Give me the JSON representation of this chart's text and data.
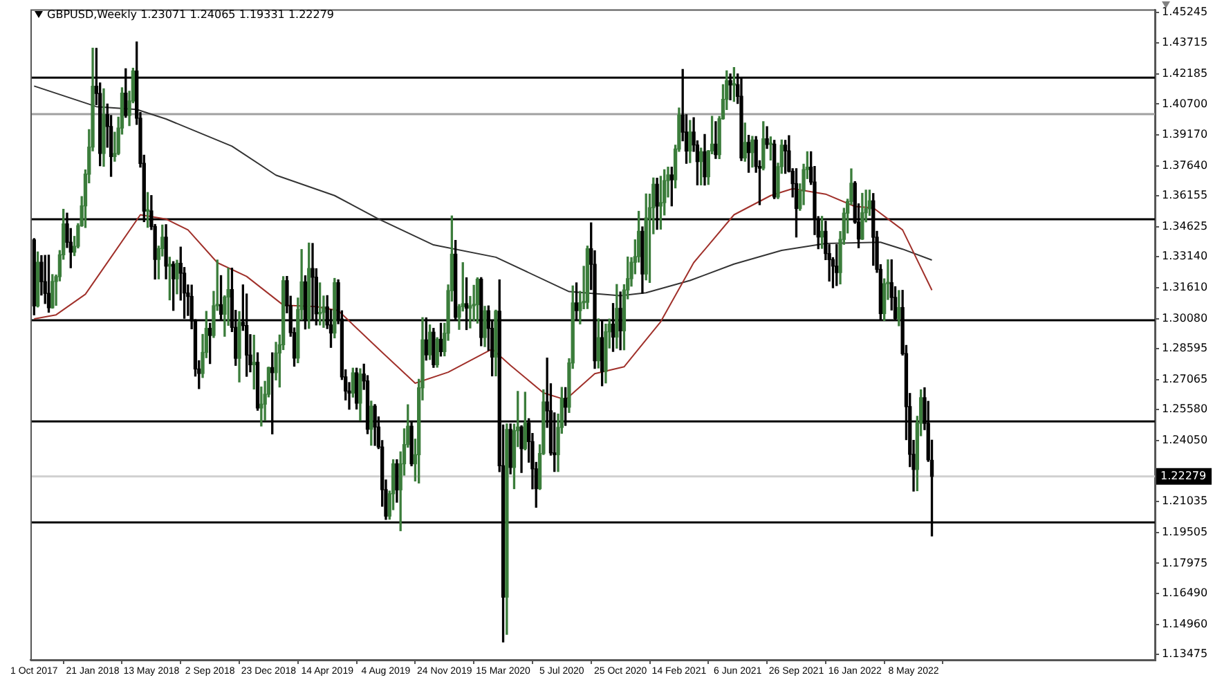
{
  "chart_data": {
    "type": "candlestick",
    "title": "GBPUSD,Weekly 1.23071 1.24065 1.19331 1.22279",
    "colors": [
      "#000000",
      "#3b7d3b",
      "#000000",
      "#000000",
      "#000000",
      "#3b7d3b",
      "#3b7d3b",
      "#3b7d3b",
      "#3b7d3b",
      "#000000",
      "#000000",
      "#3b7d3b",
      "#3b7d3b",
      "#3b7d3b",
      "#3b7d3b",
      "#3b7d3b",
      "#3b7d3b",
      "#000000",
      "#000000",
      "#3b7d3b",
      "#000000",
      "#000000",
      "#3b7d3b",
      "#3b7d3b",
      "#3b7d3b",
      "#000000",
      "#3b7d3b",
      "#3b7d3b",
      "#000000",
      "#000000",
      "#000000",
      "#3b7d3b",
      "#000000",
      "#000000",
      "#3b7d3b",
      "#3b7d3b",
      "#000000",
      "#3b7d3b",
      "#000000",
      "#3b7d3b",
      "#000000",
      "#000000",
      "#000000",
      "#000000",
      "#000000",
      "#000000",
      "#3b7d3b",
      "#3b7d3b",
      "#000000",
      "#3b7d3b",
      "#3b7d3b",
      "#000000",
      "#3b7d3b",
      "#3b7d3b",
      "#000000",
      "#000000",
      "#3b7d3b",
      "#000000",
      "#000000",
      "#000000",
      "#3b7d3b",
      "#000000",
      "#3b7d3b",
      "#3b7d3b",
      "#3b7d3b",
      "#000000",
      "#3b7d3b",
      "#3b7d3b",
      "#3b7d3b",
      "#000000",
      "#000000",
      "#000000",
      "#3b7d3b",
      "#3b7d3b",
      "#000000",
      "#3b7d3b",
      "#000000",
      "#000000",
      "#3b7d3b",
      "#3b7d3b",
      "#000000",
      "#000000",
      "#3b7d3b",
      "#000000",
      "#000000",
      "#000000",
      "#000000",
      "#3b7d3b",
      "#000000",
      "#3b7d3b",
      "#000000",
      "#000000",
      "#3b7d3b",
      "#000000",
      "#000000",
      "#000000",
      "#000000",
      "#3b7d3b",
      "#3b7d3b",
      "#000000",
      "#3b7d3b",
      "#3b7d3b",
      "#3b7d3b",
      "#000000",
      "#3b7d3b",
      "#3b7d3b",
      "#3b7d3b",
      "#000000",
      "#3b7d3b",
      "#000000",
      "#3b7d3b",
      "#000000",
      "#3b7d3b",
      "#3b7d3b",
      "#3b7d3b",
      "#000000",
      "#3b7d3b",
      "#3b7d3b",
      "#000000",
      "#3b7d3b",
      "#3b7d3b",
      "#3b7d3b",
      "#000000",
      "#3b7d3b",
      "#000000",
      "#000000",
      "#3b7d3b",
      "#000000",
      "#000000",
      "#3b7d3b",
      "#000000",
      "#3b7d3b",
      "#3b7d3b",
      "#000000",
      "#3b7d3b",
      "#000000",
      "#000000",
      "#000000",
      "#3b7d3b",
      "#3b7d3b",
      "#000000",
      "#000000",
      "#000000",
      "#3b7d3b",
      "#3b7d3b",
      "#000000",
      "#3b7d3b",
      "#3b7d3b",
      "#000000",
      "#3b7d3b",
      "#3b7d3b",
      "#3b7d3b",
      "#000000",
      "#000000",
      "#3b7d3b",
      "#000000",
      "#3b7d3b",
      "#3b7d3b",
      "#000000",
      "#3b7d3b",
      "#000000",
      "#3b7d3b",
      "#3b7d3b",
      "#3b7d3b",
      "#3b7d3b",
      "#3b7d3b",
      "#000000",
      "#3b7d3b",
      "#3b7d3b",
      "#3b7d3b",
      "#000000",
      "#3b7d3b",
      "#3b7d3b",
      "#3b7d3b",
      "#000000",
      "#3b7d3b",
      "#3b7d3b",
      "#000000",
      "#000000",
      "#3b7d3b",
      "#000000",
      "#000000",
      "#3b7d3b",
      "#000000",
      "#3b7d3b",
      "#3b7d3b",
      "#000000",
      "#3b7d3b",
      "#3b7d3b",
      "#3b7d3b",
      "#000000",
      "#3b7d3b",
      "#000000",
      "#000000",
      "#3b7d3b",
      "#000000",
      "#3b7d3b",
      "#000000",
      "#000000",
      "#3b7d3b",
      "#000000",
      "#3b7d3b",
      "#000000",
      "#3b7d3b",
      "#3b7d3b",
      "#000000",
      "#000000",
      "#000000",
      "#000000",
      "#3b7d3b",
      "#3b7d3b",
      "#3b7d3b",
      "#000000",
      "#000000",
      "#000000",
      "#3b7d3b",
      "#000000",
      "#000000",
      "#000000",
      "#000000",
      "#3b7d3b",
      "#3b7d3b",
      "#3b7d3b",
      "#3b7d3b",
      "#000000",
      "#000000",
      "#3b7d3b",
      "#3b7d3b",
      "#3b7d3b",
      "#000000",
      "#000000",
      "#000000",
      "#3b7d3b",
      "#3b7d3b",
      "#000000",
      "#000000",
      "#3b7d3b",
      "#000000",
      "#000000",
      "#000000",
      "#000000",
      "#3b7d3b",
      "#3b7d3b",
      "#000000",
      "#000000",
      "#000000"
    ],
    "x": [
      "2017-10-01",
      "2017-10-08",
      "2017-10-15",
      "2017-10-22",
      "2017-10-29",
      "2017-11-05",
      "2017-11-12",
      "2017-11-19",
      "2017-11-26",
      "2017-12-03",
      "2017-12-10",
      "2017-12-17",
      "2017-12-24",
      "2017-12-31",
      "2018-01-07",
      "2018-01-14",
      "2018-01-21",
      "2018-01-28",
      "2018-02-04",
      "2018-02-11",
      "2018-02-18",
      "2018-02-25",
      "2018-03-04",
      "2018-03-11",
      "2018-03-18",
      "2018-03-25",
      "2018-04-01",
      "2018-04-08",
      "2018-04-15",
      "2018-04-22",
      "2018-04-29",
      "2018-05-06",
      "2018-05-13",
      "2018-05-20",
      "2018-05-27",
      "2018-06-03",
      "2018-06-10",
      "2018-06-17",
      "2018-06-24",
      "2018-07-01",
      "2018-07-08",
      "2018-07-15",
      "2018-07-22",
      "2018-07-29",
      "2018-08-05",
      "2018-08-12",
      "2018-08-19",
      "2018-08-26",
      "2018-09-02",
      "2018-09-09",
      "2018-09-16",
      "2018-09-23",
      "2018-09-30",
      "2018-10-07",
      "2018-10-14",
      "2018-10-21",
      "2018-10-28",
      "2018-11-04",
      "2018-11-11",
      "2018-11-18",
      "2018-11-25",
      "2018-12-02",
      "2018-12-09",
      "2018-12-16",
      "2018-12-23",
      "2018-12-30",
      "2019-01-06",
      "2019-01-13",
      "2019-01-20",
      "2019-01-27",
      "2019-02-03",
      "2019-02-10",
      "2019-02-17",
      "2019-02-24",
      "2019-03-03",
      "2019-03-10",
      "2019-03-17",
      "2019-03-24",
      "2019-03-31",
      "2019-04-07",
      "2019-04-14",
      "2019-04-21",
      "2019-04-28",
      "2019-05-05",
      "2019-05-12",
      "2019-05-19",
      "2019-05-26",
      "2019-06-02",
      "2019-06-09",
      "2019-06-16",
      "2019-06-23",
      "2019-06-30",
      "2019-07-07",
      "2019-07-14",
      "2019-07-21",
      "2019-07-28",
      "2019-08-04",
      "2019-08-11",
      "2019-08-18",
      "2019-08-25",
      "2019-09-01",
      "2019-09-08",
      "2019-09-15",
      "2019-09-22",
      "2019-09-29",
      "2019-10-06",
      "2019-10-13",
      "2019-10-20",
      "2019-10-27",
      "2019-11-03",
      "2019-11-10",
      "2019-11-17",
      "2019-11-24",
      "2019-12-01",
      "2019-12-08",
      "2019-12-15",
      "2019-12-22",
      "2019-12-29",
      "2020-01-05",
      "2020-01-12",
      "2020-01-19",
      "2020-01-26",
      "2020-02-02",
      "2020-02-09",
      "2020-02-16",
      "2020-02-23",
      "2020-03-01",
      "2020-03-08",
      "2020-03-15",
      "2020-03-22",
      "2020-03-29",
      "2020-04-05",
      "2020-04-12",
      "2020-04-19",
      "2020-04-26",
      "2020-05-03",
      "2020-05-10",
      "2020-05-17",
      "2020-05-24",
      "2020-05-31",
      "2020-06-07",
      "2020-06-14",
      "2020-06-21",
      "2020-06-28",
      "2020-07-05",
      "2020-07-12",
      "2020-07-19",
      "2020-07-26",
      "2020-08-02",
      "2020-08-09",
      "2020-08-16",
      "2020-08-23",
      "2020-08-30",
      "2020-09-06",
      "2020-09-13",
      "2020-09-20",
      "2020-09-27",
      "2020-10-04",
      "2020-10-11",
      "2020-10-18",
      "2020-10-25",
      "2020-11-01",
      "2020-11-08",
      "2020-11-15",
      "2020-11-22",
      "2020-11-29",
      "2020-12-06",
      "2020-12-13",
      "2020-12-20",
      "2020-12-27",
      "2021-01-03",
      "2021-01-10",
      "2021-01-17",
      "2021-01-24",
      "2021-01-31",
      "2021-02-07",
      "2021-02-14",
      "2021-02-21",
      "2021-02-28",
      "2021-03-07",
      "2021-03-14",
      "2021-03-21",
      "2021-03-28",
      "2021-04-04",
      "2021-04-11",
      "2021-04-18",
      "2021-04-25",
      "2021-05-02",
      "2021-05-09",
      "2021-05-16",
      "2021-05-23",
      "2021-05-30",
      "2021-06-06",
      "2021-06-13",
      "2021-06-20",
      "2021-06-27",
      "2021-07-04",
      "2021-07-11",
      "2021-07-18",
      "2021-07-25",
      "2021-08-01",
      "2021-08-08",
      "2021-08-15",
      "2021-08-22",
      "2021-08-29",
      "2021-09-05",
      "2021-09-12",
      "2021-09-19",
      "2021-09-26",
      "2021-10-03",
      "2021-10-10",
      "2021-10-17",
      "2021-10-24",
      "2021-10-31",
      "2021-11-07",
      "2021-11-14",
      "2021-11-21",
      "2021-11-28",
      "2021-12-05",
      "2021-12-12",
      "2021-12-19",
      "2021-12-26",
      "2022-01-02",
      "2022-01-09",
      "2022-01-16",
      "2022-01-23",
      "2022-01-30",
      "2022-02-06",
      "2022-02-13",
      "2022-02-20",
      "2022-02-27",
      "2022-03-06",
      "2022-03-13",
      "2022-03-20",
      "2022-03-27",
      "2022-04-03",
      "2022-04-10",
      "2022-04-17",
      "2022-04-24",
      "2022-05-01",
      "2022-05-08",
      "2022-05-15",
      "2022-05-22",
      "2022-05-29",
      "2022-06-05",
      "2022-06-12"
    ],
    "ohlc": [
      [
        1.3398,
        1.3404,
        1.3027,
        1.3071
      ],
      [
        1.3071,
        1.3338,
        1.3066,
        1.3287
      ],
      [
        1.3287,
        1.332,
        1.3125,
        1.3191
      ],
      [
        1.3191,
        1.3321,
        1.3083,
        1.3133
      ],
      [
        1.3133,
        1.3322,
        1.304,
        1.3062
      ],
      [
        1.3062,
        1.3226,
        1.306,
        1.3192
      ],
      [
        1.3192,
        1.3224,
        1.3074,
        1.3216
      ],
      [
        1.3216,
        1.3345,
        1.3195,
        1.3324
      ],
      [
        1.3324,
        1.3549,
        1.3302,
        1.3477
      ],
      [
        1.3477,
        1.353,
        1.336,
        1.3386
      ],
      [
        1.3386,
        1.3454,
        1.326,
        1.3337
      ],
      [
        1.3337,
        1.3415,
        1.332,
        1.3366
      ],
      [
        1.3366,
        1.3478,
        1.3358,
        1.3468
      ],
      [
        1.3468,
        1.3612,
        1.3465,
        1.3566
      ],
      [
        1.3566,
        1.3744,
        1.3459,
        1.3723
      ],
      [
        1.3723,
        1.3943,
        1.368,
        1.3857
      ],
      [
        1.3857,
        1.4346,
        1.3838,
        1.4158
      ],
      [
        1.4158,
        1.4345,
        1.4067,
        1.4122
      ],
      [
        1.4122,
        1.4174,
        1.3765,
        1.3825
      ],
      [
        1.3825,
        1.4145,
        1.3762,
        1.4018
      ],
      [
        1.4018,
        1.407,
        1.3856,
        1.3959
      ],
      [
        1.3959,
        1.4013,
        1.3712,
        1.381
      ],
      [
        1.381,
        1.393,
        1.3787,
        1.3825
      ],
      [
        1.3825,
        1.4005,
        1.3819,
        1.3951
      ],
      [
        1.3951,
        1.415,
        1.3921,
        1.4124
      ],
      [
        1.4124,
        1.4244,
        1.4004,
        1.4014
      ],
      [
        1.4014,
        1.4133,
        1.3963,
        1.4085
      ],
      [
        1.4085,
        1.4247,
        1.4076,
        1.4233
      ],
      [
        1.4233,
        1.4377,
        1.3969,
        1.4
      ],
      [
        1.4,
        1.4028,
        1.3758,
        1.3776
      ],
      [
        1.3776,
        1.3817,
        1.3488,
        1.354
      ],
      [
        1.354,
        1.3632,
        1.346,
        1.3541
      ],
      [
        1.3541,
        1.3617,
        1.3449,
        1.3464
      ],
      [
        1.3464,
        1.3474,
        1.3204,
        1.3301
      ],
      [
        1.3301,
        1.3367,
        1.3205,
        1.3355
      ],
      [
        1.3355,
        1.3471,
        1.3318,
        1.3411
      ],
      [
        1.3411,
        1.3473,
        1.3205,
        1.3268
      ],
      [
        1.3268,
        1.3312,
        1.3101,
        1.3277
      ],
      [
        1.3277,
        1.329,
        1.3049,
        1.3205
      ],
      [
        1.3205,
        1.3297,
        1.3131,
        1.3282
      ],
      [
        1.3282,
        1.3362,
        1.31,
        1.3233
      ],
      [
        1.3233,
        1.3261,
        1.301,
        1.3135
      ],
      [
        1.3135,
        1.3175,
        1.3024,
        1.3118
      ],
      [
        1.3118,
        1.3174,
        1.2958,
        1.2997
      ],
      [
        1.2997,
        1.3003,
        1.2724,
        1.2759
      ],
      [
        1.2759,
        1.28,
        1.2662,
        1.2737
      ],
      [
        1.2737,
        1.293,
        1.2717,
        1.2841
      ],
      [
        1.2841,
        1.3044,
        1.2815,
        1.296
      ],
      [
        1.296,
        1.2985,
        1.2786,
        1.2925
      ],
      [
        1.2925,
        1.3143,
        1.2915,
        1.3072
      ],
      [
        1.3072,
        1.3298,
        1.3049,
        1.3077
      ],
      [
        1.3077,
        1.3221,
        1.3002,
        1.303
      ],
      [
        1.303,
        1.3121,
        1.2921,
        1.3115
      ],
      [
        1.3115,
        1.3258,
        1.2975,
        1.3152
      ],
      [
        1.3152,
        1.3258,
        1.2944,
        1.2965
      ],
      [
        1.2965,
        1.3049,
        1.2777,
        1.2812
      ],
      [
        1.2812,
        1.3043,
        1.2695,
        1.299
      ],
      [
        1.299,
        1.3175,
        1.295,
        1.2974
      ],
      [
        1.2974,
        1.313,
        1.2723,
        1.2828
      ],
      [
        1.2828,
        1.2929,
        1.2745,
        1.278
      ],
      [
        1.278,
        1.2926,
        1.266,
        1.2792
      ],
      [
        1.2792,
        1.2839,
        1.2555,
        1.2566
      ],
      [
        1.2566,
        1.267,
        1.2477,
        1.2585
      ],
      [
        1.2585,
        1.2698,
        1.2505,
        1.2634
      ],
      [
        1.2634,
        1.2768,
        1.2621,
        1.2766
      ],
      [
        1.2766,
        1.2839,
        1.2438,
        1.2741
      ],
      [
        1.2741,
        1.2891,
        1.2705,
        1.2838
      ],
      [
        1.2838,
        1.2927,
        1.267,
        1.2879
      ],
      [
        1.2879,
        1.3216,
        1.2855,
        1.3196
      ],
      [
        1.3196,
        1.3217,
        1.3037,
        1.3072
      ],
      [
        1.3072,
        1.3119,
        1.2921,
        1.2939
      ],
      [
        1.2939,
        1.2962,
        1.2773,
        1.2813
      ],
      [
        1.2813,
        1.311,
        1.279,
        1.3053
      ],
      [
        1.3053,
        1.335,
        1.3003,
        1.319
      ],
      [
        1.319,
        1.322,
        1.2957,
        1.3006
      ],
      [
        1.3006,
        1.3382,
        1.296,
        1.3256
      ],
      [
        1.3256,
        1.338,
        1.3003,
        1.3213
      ],
      [
        1.3213,
        1.3255,
        1.2977,
        1.3032
      ],
      [
        1.3032,
        1.3185,
        1.2977,
        1.3039
      ],
      [
        1.3039,
        1.312,
        1.2965,
        1.3066
      ],
      [
        1.3066,
        1.3122,
        1.2959,
        1.2977
      ],
      [
        1.2977,
        1.3053,
        1.2866,
        1.2937
      ],
      [
        1.2937,
        1.3207,
        1.2913,
        1.3186
      ],
      [
        1.3186,
        1.32,
        1.2983,
        1.3006
      ],
      [
        1.3006,
        1.3047,
        1.2707,
        1.272
      ],
      [
        1.272,
        1.2755,
        1.2606,
        1.265
      ],
      [
        1.265,
        1.2692,
        1.256,
        1.264
      ],
      [
        1.264,
        1.2763,
        1.262,
        1.274
      ],
      [
        1.274,
        1.2763,
        1.2561,
        1.259
      ],
      [
        1.259,
        1.276,
        1.2505,
        1.2734
      ],
      [
        1.2734,
        1.2783,
        1.2658,
        1.27
      ],
      [
        1.27,
        1.2726,
        1.2439,
        1.2461
      ],
      [
        1.2461,
        1.26,
        1.2382,
        1.2575
      ],
      [
        1.2575,
        1.2583,
        1.2381,
        1.2472
      ],
      [
        1.2472,
        1.2522,
        1.2365,
        1.2373
      ],
      [
        1.2373,
        1.2405,
        1.208,
        1.2162
      ],
      [
        1.2162,
        1.221,
        1.2015,
        1.2031
      ],
      [
        1.2031,
        1.2155,
        1.2016,
        1.2142
      ],
      [
        1.2142,
        1.231,
        1.2063,
        1.229
      ],
      [
        1.229,
        1.231,
        1.21,
        1.2161
      ],
      [
        1.2161,
        1.2349,
        1.1959,
        1.229
      ],
      [
        1.229,
        1.2463,
        1.2234,
        1.2385
      ],
      [
        1.2385,
        1.2582,
        1.2372,
        1.2476
      ],
      [
        1.2476,
        1.25,
        1.228,
        1.229
      ],
      [
        1.229,
        1.2412,
        1.2205,
        1.2335
      ],
      [
        1.2335,
        1.2708,
        1.2195,
        1.2666
      ],
      [
        1.2666,
        1.3013,
        1.2606,
        1.2903
      ],
      [
        1.2903,
        1.3012,
        1.2803,
        1.2829
      ],
      [
        1.2829,
        1.2977,
        1.2806,
        1.2941
      ],
      [
        1.2941,
        1.296,
        1.2767,
        1.278
      ],
      [
        1.278,
        1.2914,
        1.2768,
        1.2906
      ],
      [
        1.2906,
        1.2985,
        1.2823,
        1.2845
      ],
      [
        1.2845,
        1.2985,
        1.2824,
        1.2936
      ],
      [
        1.2936,
        1.3175,
        1.2901,
        1.3147
      ],
      [
        1.3147,
        1.3516,
        1.3095,
        1.3327
      ],
      [
        1.3327,
        1.3395,
        1.2999,
        1.3015
      ],
      [
        1.3015,
        1.3078,
        1.2955,
        1.3068
      ],
      [
        1.3068,
        1.3285,
        1.3046,
        1.3082
      ],
      [
        1.3082,
        1.321,
        1.2954,
        1.306
      ],
      [
        1.306,
        1.3118,
        1.2962,
        1.3072
      ],
      [
        1.3072,
        1.3173,
        1.2998,
        1.3077
      ],
      [
        1.3077,
        1.321,
        1.2986,
        1.3203
      ],
      [
        1.3203,
        1.3211,
        1.2874,
        1.2915
      ],
      [
        1.2915,
        1.3069,
        1.287,
        1.3047
      ],
      [
        1.3047,
        1.3071,
        1.2851,
        1.296
      ],
      [
        1.296,
        1.3,
        1.2725,
        1.2818
      ],
      [
        1.2818,
        1.305,
        1.2725,
        1.3045
      ],
      [
        1.3045,
        1.32,
        1.2251,
        1.228
      ],
      [
        1.228,
        1.2482,
        1.1409,
        1.163
      ],
      [
        1.163,
        1.2487,
        1.1446,
        1.246
      ],
      [
        1.246,
        1.2487,
        1.224,
        1.2272
      ],
      [
        1.2272,
        1.2486,
        1.2167,
        1.2454
      ],
      [
        1.2454,
        1.2648,
        1.2375,
        1.2472
      ],
      [
        1.2472,
        1.2478,
        1.2247,
        1.2365
      ],
      [
        1.2365,
        1.2644,
        1.2359,
        1.2491
      ],
      [
        1.2491,
        1.2513,
        1.2298,
        1.24
      ],
      [
        1.24,
        1.244,
        1.2166,
        1.2265
      ],
      [
        1.2265,
        1.2297,
        1.2075,
        1.2167
      ],
      [
        1.2167,
        1.2384,
        1.2163,
        1.2341
      ],
      [
        1.2341,
        1.2656,
        1.2336,
        1.2596
      ],
      [
        1.2596,
        1.2813,
        1.247,
        1.2552
      ],
      [
        1.2552,
        1.2686,
        1.2333,
        1.2344
      ],
      [
        1.2344,
        1.2542,
        1.2252,
        1.2335
      ],
      [
        1.2335,
        1.2536,
        1.2252,
        1.247
      ],
      [
        1.247,
        1.2668,
        1.2441,
        1.2614
      ],
      [
        1.2614,
        1.2667,
        1.248,
        1.257
      ],
      [
        1.257,
        1.281,
        1.2544,
        1.2789
      ],
      [
        1.2789,
        1.317,
        1.2762,
        1.3086
      ],
      [
        1.3086,
        1.3185,
        1.3006,
        1.3048
      ],
      [
        1.3048,
        1.3143,
        1.2982,
        1.3087
      ],
      [
        1.3087,
        1.3267,
        1.3057,
        1.3089
      ],
      [
        1.3089,
        1.3367,
        1.3058,
        1.3354
      ],
      [
        1.3354,
        1.3482,
        1.3152,
        1.3277
      ],
      [
        1.3277,
        1.3344,
        1.2762,
        1.28
      ],
      [
        1.28,
        1.3007,
        1.2764,
        1.2914
      ],
      [
        1.2914,
        1.3001,
        1.2676,
        1.2747
      ],
      [
        1.2747,
        1.2981,
        1.269,
        1.2943
      ],
      [
        1.2943,
        1.3006,
        1.2863,
        1.2981
      ],
      [
        1.2981,
        1.3083,
        1.2846,
        1.2917
      ],
      [
        1.2917,
        1.3177,
        1.2862,
        1.3059
      ],
      [
        1.3059,
        1.314,
        1.2854,
        1.2948
      ],
      [
        1.2948,
        1.3176,
        1.2854,
        1.315
      ],
      [
        1.315,
        1.3313,
        1.3106,
        1.3206
      ],
      [
        1.3206,
        1.331,
        1.3169,
        1.3287
      ],
      [
        1.3287,
        1.3398,
        1.323,
        1.3315
      ],
      [
        1.3315,
        1.3539,
        1.3288,
        1.344
      ],
      [
        1.344,
        1.3462,
        1.3134,
        1.3229
      ],
      [
        1.3229,
        1.3625,
        1.32,
        1.3506
      ],
      [
        1.3506,
        1.3624,
        1.3187,
        1.3557
      ],
      [
        1.3557,
        1.3704,
        1.3428,
        1.3673
      ],
      [
        1.3673,
        1.3703,
        1.345,
        1.3565
      ],
      [
        1.3565,
        1.3712,
        1.3451,
        1.3582
      ],
      [
        1.3582,
        1.3745,
        1.3521,
        1.3691
      ],
      [
        1.3691,
        1.3758,
        1.361,
        1.3719
      ],
      [
        1.3719,
        1.3758,
        1.3566,
        1.3695
      ],
      [
        1.3695,
        1.3866,
        1.3655,
        1.3847
      ],
      [
        1.3847,
        1.405,
        1.3836,
        1.4015
      ],
      [
        1.4015,
        1.4241,
        1.3888,
        1.3931
      ],
      [
        1.3931,
        1.4017,
        1.3777,
        1.3837
      ],
      [
        1.3837,
        1.3989,
        1.378,
        1.3931
      ],
      [
        1.3931,
        1.4002,
        1.3836,
        1.3867
      ],
      [
        1.3867,
        1.3888,
        1.367,
        1.3785
      ],
      [
        1.3785,
        1.3852,
        1.367,
        1.3834
      ],
      [
        1.3834,
        1.3919,
        1.3669,
        1.371
      ],
      [
        1.371,
        1.384,
        1.3672,
        1.3838
      ],
      [
        1.3838,
        1.4009,
        1.3824,
        1.3871
      ],
      [
        1.3871,
        1.3983,
        1.3801,
        1.3819
      ],
      [
        1.3819,
        1.4008,
        1.38,
        1.3997
      ],
      [
        1.3997,
        1.4166,
        1.3995,
        1.4093
      ],
      [
        1.4093,
        1.4234,
        1.4043,
        1.4185
      ],
      [
        1.4185,
        1.4219,
        1.4091,
        1.4164
      ],
      [
        1.4164,
        1.425,
        1.4083,
        1.4166
      ],
      [
        1.4166,
        1.4219,
        1.4073,
        1.4108
      ],
      [
        1.4108,
        1.42,
        1.379,
        1.3803
      ],
      [
        1.3803,
        1.3976,
        1.3787,
        1.388
      ],
      [
        1.388,
        1.3915,
        1.3732,
        1.383
      ],
      [
        1.383,
        1.391,
        1.3758,
        1.3892
      ],
      [
        1.3892,
        1.3909,
        1.3732,
        1.3761
      ],
      [
        1.3761,
        1.3789,
        1.3572,
        1.3753
      ],
      [
        1.3753,
        1.3983,
        1.3744,
        1.3898
      ],
      [
        1.3898,
        1.3958,
        1.385,
        1.387
      ],
      [
        1.387,
        1.3907,
        1.3793,
        1.3871
      ],
      [
        1.3871,
        1.389,
        1.3602,
        1.361
      ],
      [
        1.361,
        1.3777,
        1.3602,
        1.376
      ],
      [
        1.376,
        1.3892,
        1.3727,
        1.3866
      ],
      [
        1.3866,
        1.389,
        1.3727,
        1.3838
      ],
      [
        1.3838,
        1.3913,
        1.3734,
        1.3737
      ],
      [
        1.3737,
        1.375,
        1.361,
        1.3676
      ],
      [
        1.3676,
        1.375,
        1.3412,
        1.3553
      ],
      [
        1.3553,
        1.3675,
        1.3544,
        1.364
      ],
      [
        1.364,
        1.3772,
        1.3572,
        1.3746
      ],
      [
        1.3746,
        1.3834,
        1.3701,
        1.3758
      ],
      [
        1.3758,
        1.3834,
        1.3672,
        1.3684
      ],
      [
        1.3684,
        1.3761,
        1.3424,
        1.35
      ],
      [
        1.35,
        1.3513,
        1.3354,
        1.3412
      ],
      [
        1.3412,
        1.3514,
        1.3356,
        1.344
      ],
      [
        1.344,
        1.349,
        1.33,
        1.333
      ],
      [
        1.333,
        1.3374,
        1.3194,
        1.33
      ],
      [
        1.33,
        1.331,
        1.3161,
        1.3268
      ],
      [
        1.3268,
        1.3374,
        1.3172,
        1.3236
      ],
      [
        1.3236,
        1.3439,
        1.318,
        1.34
      ],
      [
        1.34,
        1.3554,
        1.3376,
        1.353
      ],
      [
        1.353,
        1.3599,
        1.3432,
        1.3588
      ],
      [
        1.3588,
        1.3749,
        1.3573,
        1.3678
      ],
      [
        1.3678,
        1.3686,
        1.348,
        1.3486
      ],
      [
        1.3486,
        1.3576,
        1.3359,
        1.3402
      ],
      [
        1.3402,
        1.3628,
        1.34,
        1.3532
      ],
      [
        1.3532,
        1.3644,
        1.3487,
        1.3552
      ],
      [
        1.3552,
        1.3644,
        1.3519,
        1.3591
      ],
      [
        1.3591,
        1.3627,
        1.3272,
        1.3411
      ],
      [
        1.3411,
        1.344,
        1.3237,
        1.3252
      ],
      [
        1.3252,
        1.3275,
        1.3002,
        1.3033
      ],
      [
        1.3033,
        1.3205,
        1.2999,
        1.3181
      ],
      [
        1.3181,
        1.3299,
        1.3103,
        1.3186
      ],
      [
        1.3186,
        1.3299,
        1.3051,
        1.3113
      ],
      [
        1.3113,
        1.3166,
        1.3004,
        1.3009
      ],
      [
        1.3009,
        1.3147,
        1.2973,
        1.3063
      ],
      [
        1.3063,
        1.3148,
        1.2828,
        1.2835
      ],
      [
        1.2835,
        1.2876,
        1.241,
        1.2573
      ],
      [
        1.2573,
        1.2638,
        1.2276,
        1.2337
      ],
      [
        1.2337,
        1.2406,
        1.2155,
        1.2262
      ],
      [
        1.2262,
        1.2525,
        1.2157,
        1.2491
      ],
      [
        1.2491,
        1.2656,
        1.2429,
        1.2617
      ],
      [
        1.2617,
        1.2666,
        1.2459,
        1.249
      ],
      [
        1.249,
        1.2599,
        1.2302,
        1.231
      ],
      [
        1.23071,
        1.24065,
        1.19331,
        1.22279
      ]
    ],
    "series": [
      {
        "type": "line",
        "color": "#a0302a",
        "x": [
          "2017-10-01",
          "2017-11-12",
          "2018-01-07",
          "2018-02-25",
          "2018-04-22",
          "2018-06-10",
          "2018-07-22",
          "2018-09-16",
          "2018-11-11",
          "2019-01-20",
          "2019-03-24",
          "2019-05-05",
          "2019-07-21",
          "2019-09-29",
          "2019-12-01",
          "2020-02-23",
          "2020-03-29",
          "2020-05-31",
          "2020-07-12",
          "2020-09-06",
          "2020-11-01",
          "2021-01-10",
          "2021-03-14",
          "2021-05-30",
          "2021-08-08",
          "2021-09-19",
          "2021-11-21",
          "2022-01-16",
          "2022-02-20",
          "2022-04-17",
          "2022-06-12"
        ],
        "values": [
          1.3007,
          1.3027,
          1.3129,
          1.3312,
          1.3522,
          1.3501,
          1.3447,
          1.3285,
          1.3217,
          1.3075,
          1.3068,
          1.3048,
          1.2858,
          1.2689,
          1.2743,
          1.2858,
          1.2777,
          1.2641,
          1.2607,
          1.2736,
          1.277,
          1.2993,
          1.3285,
          1.3522,
          1.3617,
          1.3651,
          1.3624,
          1.3563,
          1.3556,
          1.3447,
          1.3149
        ]
      },
      {
        "type": "line",
        "color": "#333333",
        "x": [
          "2017-10-01",
          "2018-01-28",
          "2018-04-15",
          "2018-06-10",
          "2018-10-14",
          "2019-01-06",
          "2019-04-28",
          "2019-07-21",
          "2019-11-03",
          "2020-03-01",
          "2020-07-19",
          "2020-10-25",
          "2020-12-13",
          "2021-03-07",
          "2021-05-30",
          "2021-08-29",
          "2021-11-21",
          "2022-03-06",
          "2022-04-17",
          "2022-06-12"
        ],
        "values": [
          1.4159,
          1.4057,
          1.4043,
          1.3996,
          1.3861,
          1.3718,
          1.3617,
          1.3501,
          1.3373,
          1.3312,
          1.3142,
          1.3122,
          1.3136,
          1.3197,
          1.3278,
          1.3346,
          1.338,
          1.3386,
          1.3352,
          1.3298
        ]
      }
    ],
    "xlim": [
      "2017-09-24",
      "2023-08-12"
    ],
    "xticks": [
      {
        "value": "2017-10-01",
        "label": "1 Oct 2017"
      },
      {
        "value": "2018-01-21",
        "label": "21 Jan 2018"
      },
      {
        "value": "2018-05-13",
        "label": "13 May 2018"
      },
      {
        "value": "2018-09-02",
        "label": "2 Sep 2018"
      },
      {
        "value": "2018-12-23",
        "label": "23 Dec 2018"
      },
      {
        "value": "2019-04-14",
        "label": "14 Apr 2019"
      },
      {
        "value": "2019-08-04",
        "label": "4 Aug 2019"
      },
      {
        "value": "2019-11-24",
        "label": "24 Nov 2019"
      },
      {
        "value": "2020-03-15",
        "label": "15 Mar 2020"
      },
      {
        "value": "2020-07-05",
        "label": "5 Jul 2020"
      },
      {
        "value": "2020-10-25",
        "label": "25 Oct 2020"
      },
      {
        "value": "2021-02-14",
        "label": "14 Feb 2021"
      },
      {
        "value": "2021-06-06",
        "label": "6 Jun 2021"
      },
      {
        "value": "2021-09-26",
        "label": "26 Sep 2021"
      },
      {
        "value": "2022-01-16",
        "label": "16 Jan 2022"
      },
      {
        "value": "2022-05-08",
        "label": "8 May 2022"
      }
    ],
    "ylim": [
      1.132,
      1.4538
    ],
    "yticks": [
      {
        "value": 1.45245,
        "label": "1.45245"
      },
      {
        "value": 1.43715,
        "label": "1.43715"
      },
      {
        "value": 1.42185,
        "label": "1.42185"
      },
      {
        "value": 1.407,
        "label": "1.40700"
      },
      {
        "value": 1.3917,
        "label": "1.39170"
      },
      {
        "value": 1.3764,
        "label": "1.37640"
      },
      {
        "value": 1.36155,
        "label": "1.36155"
      },
      {
        "value": 1.34625,
        "label": "1.34625"
      },
      {
        "value": 1.3314,
        "label": "1.33140"
      },
      {
        "value": 1.3161,
        "label": "1.31610"
      },
      {
        "value": 1.3008,
        "label": "1.30080"
      },
      {
        "value": 1.28595,
        "label": "1.28595"
      },
      {
        "value": 1.27065,
        "label": "1.27065"
      },
      {
        "value": 1.2558,
        "label": "1.25580"
      },
      {
        "value": 1.2405,
        "label": "1.24050"
      },
      {
        "value": 1.21035,
        "label": "1.21035"
      },
      {
        "value": 1.19505,
        "label": "1.19505"
      },
      {
        "value": 1.17975,
        "label": "1.17975"
      },
      {
        "value": 1.1649,
        "label": "1.16490"
      },
      {
        "value": 1.1496,
        "label": "1.14960"
      },
      {
        "value": 1.13475,
        "label": "1.13475"
      }
    ],
    "ref_lines": [
      {
        "axis": "y",
        "value": 1.42,
        "color": "#000000"
      },
      {
        "axis": "y",
        "value": 1.402,
        "color": "#a0a0a0"
      },
      {
        "axis": "y",
        "value": 1.35,
        "color": "#000000"
      },
      {
        "axis": "y",
        "value": 1.3,
        "color": "#000000"
      },
      {
        "axis": "y",
        "value": 1.25,
        "color": "#000000"
      },
      {
        "axis": "y",
        "value": 1.2,
        "color": "#000000"
      },
      {
        "axis": "y",
        "value": 1.22279,
        "label": "1.22279",
        "color": "#d0d0d0"
      }
    ]
  }
}
